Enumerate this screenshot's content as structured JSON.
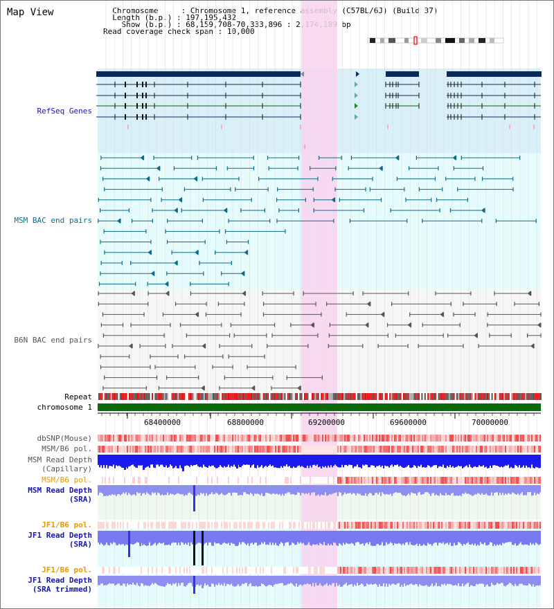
{
  "header": {
    "title": "Map View",
    "chromosome_label": "Chromosome",
    "chromosome_value": "Chromosome 1, reference assembly (C57BL/6J) (Build 37)",
    "length_label": "Length (b.p.)",
    "length_value": "197,195,432",
    "show_label": "Show (b.p.)",
    "show_value": "68,159,708-70,333,896 : 2,174,189 bp",
    "coverage_label": "Read coverage check span",
    "coverage_value": "10,000"
  },
  "tracks": {
    "refseq": "RefSeq Genes",
    "msm_bac": "MSM BAC end pairs",
    "b6n_bac": "B6N BAC end pairs",
    "repeat": "Repeat",
    "chromosome": "chromosome 1",
    "dbsnp": "dbSNP(Mouse)",
    "msm_b6_pol_1": "MSM/B6 pol.",
    "msm_depth_cap_1": "MSM Read Depth",
    "msm_depth_cap_2": "(Capillary)",
    "msm_b6_pol_2": "MSM/B6 pol.",
    "msm_depth_sra_1": "MSM Read Depth",
    "msm_depth_sra_2": "(SRA)",
    "jf1_b6_pol_1": "JF1/B6 pol.",
    "jf1_depth_sra_1": "JF1 Read Depth",
    "jf1_depth_sra_2": "(SRA)",
    "jf1_b6_pol_2": "JF1/B6 pol.",
    "jf1_depth_trim_1": "JF1 Read Depth",
    "jf1_depth_trim_2": "(SRA trimmed)"
  },
  "axis": {
    "ticks": [
      "68400000",
      "68800000",
      "69200000",
      "69600000",
      "70000000"
    ]
  },
  "colors": {
    "refseq_bg": "#d9f0f9",
    "msm_bg": "#e6fbfb",
    "b6n_bg": "#f6f6f6",
    "highlight": "#f7d3ef",
    "gene": "#0a2a5c",
    "msm_pair": "#0f6b87",
    "b6n_pair": "#555555",
    "chromosome_bar": "#0a6b0a",
    "depth_blue": "#1a1aee",
    "depth_light": "#8e8ef0",
    "label_blue": "#1515b0",
    "label_orange": "#e69a00"
  }
}
